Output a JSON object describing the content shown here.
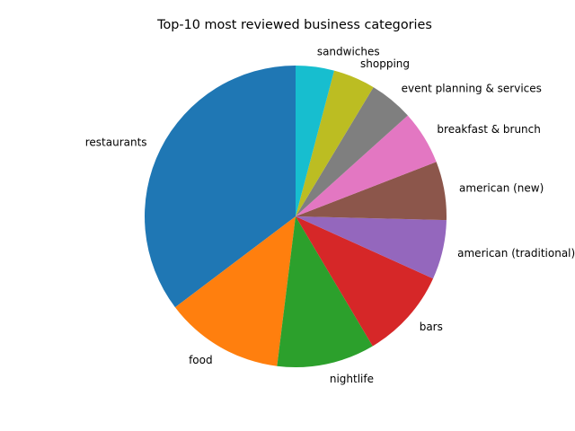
{
  "chart_data": {
    "type": "pie",
    "title": "Top-10 most reviewed business categories",
    "categories": [
      "restaurants",
      "food",
      "nightlife",
      "bars",
      "american (traditional)",
      "american (new)",
      "breakfast & brunch",
      "event planning & services",
      "shopping",
      "sandwiches"
    ],
    "values": [
      36.0,
      13.0,
      10.7,
      9.9,
      6.5,
      6.4,
      5.9,
      4.8,
      4.6,
      4.2
    ],
    "colors": [
      "#1f77b4",
      "#ff7f0e",
      "#2ca02c",
      "#d62728",
      "#9467bd",
      "#8c564b",
      "#e377c2",
      "#7f7f7f",
      "#bcbd22",
      "#17becf"
    ],
    "start_angle_deg": 90,
    "direction": "counterclockwise",
    "legend": "none"
  }
}
